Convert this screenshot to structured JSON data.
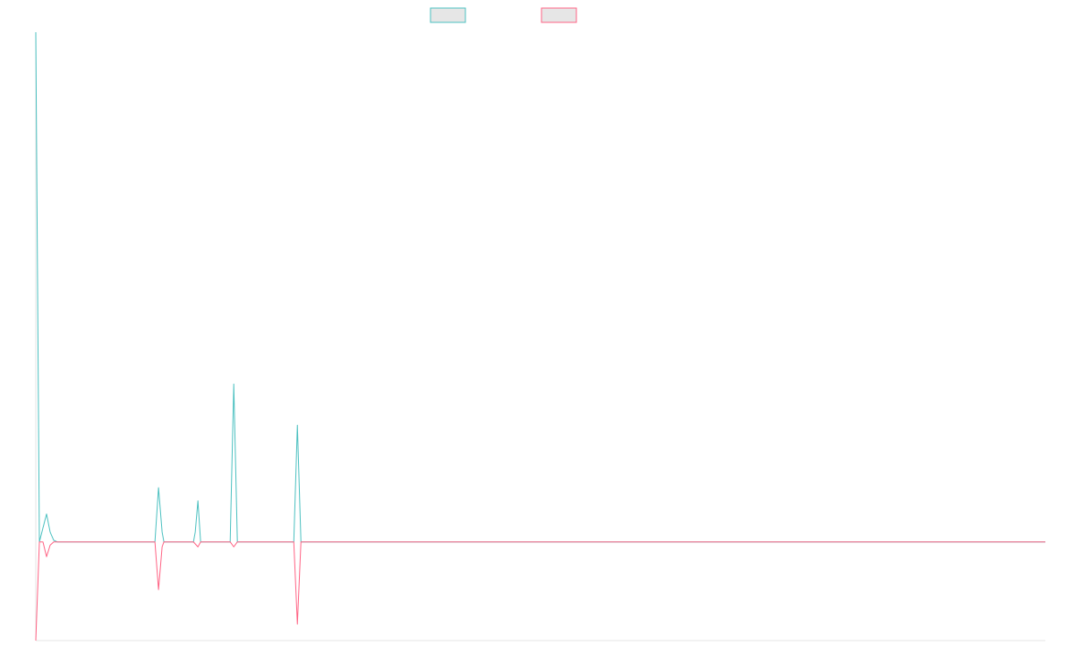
{
  "chart_data": {
    "type": "line",
    "title": "",
    "xlabel": "",
    "ylabel": "",
    "grid": false,
    "legend_position": "top",
    "x": [
      0,
      1,
      2,
      3,
      4,
      5,
      6,
      7,
      8,
      9,
      10,
      11,
      12,
      13,
      14,
      15,
      16,
      17,
      18,
      19,
      20,
      21,
      22,
      23,
      24,
      25,
      26,
      27,
      28,
      29,
      30,
      31,
      32,
      33,
      34,
      35,
      36,
      37,
      38,
      39,
      40,
      41,
      42,
      43,
      44,
      45,
      46,
      47,
      48,
      49,
      50,
      51,
      52,
      53,
      54,
      55,
      56,
      57,
      58,
      59,
      60,
      61,
      62,
      63,
      64,
      65,
      66,
      67,
      68,
      69,
      70,
      71,
      72,
      73,
      74,
      75,
      76,
      77,
      78,
      79,
      80,
      81,
      82,
      83,
      84,
      85,
      86,
      87,
      88,
      89,
      90,
      91,
      92,
      93,
      94,
      95,
      96,
      97,
      98,
      99,
      100,
      101,
      102,
      103,
      104,
      105,
      106,
      107,
      108,
      109,
      110,
      111,
      112,
      113,
      114,
      115,
      116,
      117,
      118,
      119,
      120,
      121,
      122,
      123,
      124,
      125,
      126,
      127,
      128,
      129,
      130,
      131,
      132,
      133,
      134,
      135,
      136,
      137,
      138,
      139,
      140,
      141,
      142,
      143,
      144,
      145,
      146,
      147,
      148,
      149,
      150,
      151,
      152,
      153,
      154,
      155,
      156,
      157,
      158,
      159,
      160,
      161,
      162,
      163,
      164,
      165,
      166,
      167,
      168,
      169,
      170,
      171,
      172,
      173,
      174,
      175,
      176,
      177,
      178,
      179,
      180,
      181,
      182,
      183,
      184,
      185,
      186,
      187,
      188,
      189,
      190,
      191,
      192,
      193,
      194,
      195,
      196,
      197,
      198,
      199,
      200,
      201,
      202,
      203,
      204,
      205,
      206,
      207,
      208,
      209,
      210,
      211,
      212,
      213,
      214,
      215,
      216,
      217,
      218,
      219,
      220,
      221,
      222,
      223,
      224,
      225,
      226,
      227,
      228,
      229,
      230,
      231,
      232,
      233,
      234,
      235,
      236,
      237,
      238,
      239,
      240,
      241,
      242,
      243,
      244,
      245,
      246,
      247,
      248,
      249,
      250,
      251,
      252,
      253,
      254,
      255,
      256,
      257,
      258,
      259,
      260,
      261,
      262,
      263,
      264,
      265,
      266,
      267,
      268,
      269,
      270,
      271,
      272,
      273,
      274,
      275,
      276,
      277,
      278,
      279,
      280,
      281,
      282,
      283,
      284,
      285,
      286,
      287,
      288,
      289,
      290,
      291,
      292,
      293,
      294,
      295,
      296,
      297,
      298,
      299,
      300,
      301,
      302,
      303,
      304,
      305,
      306,
      307,
      308,
      309,
      310,
      311,
      312,
      313,
      314,
      315,
      316,
      317,
      318,
      319,
      320,
      321,
      322,
      323,
      324,
      325,
      326,
      327,
      328,
      329,
      330,
      331,
      332,
      333,
      334,
      335,
      336,
      337,
      338,
      339,
      340,
      341,
      342,
      343,
      344,
      345,
      346,
      347,
      348,
      349,
      350,
      351,
      352,
      353,
      354,
      355,
      356,
      357,
      358,
      359,
      360,
      361,
      362,
      363,
      364,
      365,
      366,
      367,
      368,
      369,
      370,
      371,
      372,
      373,
      374,
      375,
      376,
      377,
      378,
      379,
      380,
      381,
      382,
      383,
      384,
      385,
      386,
      387,
      388,
      389,
      390,
      391,
      392,
      393,
      394,
      395,
      396,
      397,
      398,
      399,
      400,
      401,
      402,
      403,
      404,
      405,
      406,
      407,
      408,
      409,
      410,
      411,
      412,
      413,
      414,
      415,
      416,
      417,
      418,
      419,
      420,
      421,
      422,
      423,
      424,
      425,
      426,
      427,
      428,
      429,
      430,
      431,
      432,
      433,
      434,
      435,
      436,
      437,
      438,
      439,
      440,
      441,
      442,
      443,
      444,
      445,
      446,
      447,
      448,
      449,
      450,
      451,
      452,
      453,
      454,
      455,
      456,
      457,
      458,
      459,
      460,
      461,
      462,
      463,
      464,
      465,
      466,
      467,
      468,
      469,
      470,
      471,
      472,
      473,
      474,
      475,
      476,
      477,
      478,
      479,
      480,
      481,
      482,
      483,
      484,
      485,
      486,
      487,
      488,
      489,
      490,
      491,
      492,
      493,
      494,
      495,
      496,
      497,
      498,
      499,
      500,
      501,
      502,
      503,
      504,
      505,
      506,
      507,
      508,
      509,
      510,
      511,
      512,
      513,
      514,
      515,
      516,
      517,
      518,
      519,
      520,
      521,
      522,
      523,
      524,
      525,
      526,
      527,
      528,
      529,
      530,
      531,
      532,
      533,
      534,
      535,
      536,
      537,
      538,
      539,
      540,
      541,
      542,
      543,
      544,
      545,
      546,
      547,
      548,
      549,
      550,
      551,
      552,
      553,
      554,
      555,
      556,
      557,
      558,
      559,
      560,
      561,
      562,
      563,
      564,
      565,
      566,
      567,
      568,
      569,
      570,
      571,
      572,
      573,
      574,
      575,
      576,
      577,
      578,
      579,
      580,
      581,
      582,
      583,
      584,
      585,
      586,
      587,
      588,
      589,
      590,
      591,
      592,
      593,
      594,
      595,
      596,
      597,
      598,
      599,
      600,
      601,
      602,
      603,
      604,
      605,
      606,
      607,
      608,
      609,
      610,
      611,
      612,
      613,
      614,
      615,
      616,
      617,
      618,
      619,
      620,
      621,
      622,
      623,
      624,
      625,
      626,
      627,
      628,
      629,
      630,
      631,
      632,
      633,
      634,
      635,
      636,
      637,
      638,
      639,
      640,
      641,
      642,
      643,
      644,
      645,
      646,
      647,
      648,
      649,
      650,
      651,
      652,
      653,
      654,
      655,
      656,
      657,
      658,
      659,
      660,
      661,
      662,
      663,
      664,
      665,
      666,
      667,
      668,
      669,
      670,
      671,
      672,
      673,
      674,
      675,
      676,
      677,
      678,
      679,
      680,
      681,
      682,
      683,
      684,
      685,
      686,
      687,
      688,
      689,
      690,
      691,
      692,
      693,
      694,
      695,
      696,
      697,
      698,
      699,
      700,
      701,
      702,
      703,
      704,
      705,
      706,
      707,
      708,
      709,
      710,
      711,
      712,
      713,
      714,
      715,
      716,
      717,
      718,
      719,
      720,
      721,
      722,
      723,
      724,
      725,
      726,
      727,
      728,
      729,
      730,
      731,
      732,
      733,
      734,
      735,
      736,
      737,
      738,
      739,
      740,
      741,
      742,
      743,
      744,
      745,
      746,
      747,
      748,
      749,
      750,
      751,
      752,
      753,
      754,
      755,
      756,
      757,
      758,
      759,
      760,
      761,
      762,
      763,
      764,
      765,
      766,
      767,
      768,
      769,
      770,
      771,
      772,
      773,
      774,
      775,
      776,
      777,
      778,
      779,
      780,
      781,
      782,
      783,
      784,
      785,
      786,
      787,
      788,
      789,
      790,
      791,
      792,
      793,
      794,
      795,
      796,
      797,
      798,
      799,
      800,
      801,
      802,
      803,
      804,
      805,
      806,
      807,
      808,
      809,
      810,
      811,
      812,
      813,
      814,
      815,
      816,
      817,
      818,
      819,
      820,
      821,
      822,
      823,
      824,
      825,
      826,
      827,
      828,
      829,
      830,
      831,
      832,
      833,
      834,
      835,
      836,
      837,
      838,
      839,
      840,
      841,
      842,
      843,
      844,
      845,
      846,
      847,
      848,
      849,
      850,
      851,
      852,
      853,
      854,
      855,
      856,
      857,
      858,
      859,
      860,
      861,
      862,
      863,
      864,
      865,
      866,
      867,
      868,
      869,
      870,
      871,
      872,
      873,
      874,
      875,
      876,
      877,
      878,
      879,
      880,
      881,
      882,
      883,
      884,
      885,
      886,
      887,
      888,
      889,
      890,
      891,
      892,
      893,
      894,
      895,
      896,
      897,
      898,
      899,
      900,
      901,
      902,
      903,
      904,
      905,
      906,
      907,
      908,
      909,
      910,
      911,
      912,
      913,
      914,
      915,
      916,
      917,
      918,
      919,
      920,
      921,
      922,
      923,
      924,
      925,
      926,
      927,
      928,
      929,
      930,
      931,
      932,
      933,
      934,
      935,
      936,
      937,
      938,
      939,
      940,
      941,
      942,
      943,
      944,
      945,
      946,
      947,
      948,
      949,
      950,
      951,
      952,
      953,
      954,
      955,
      956,
      957,
      958,
      959,
      960,
      961,
      962,
      963,
      964,
      965,
      966,
      967,
      968,
      969,
      970,
      971,
      972,
      973,
      974,
      975,
      976,
      977,
      978,
      979,
      980,
      981,
      982,
      983,
      984,
      985,
      986,
      987,
      988,
      989,
      990,
      991,
      992,
      993,
      994,
      995,
      996,
      997,
      998,
      999,
      1000,
      1001,
      1002,
      1003,
      1004,
      1005,
      1006,
      1007,
      1008,
      1009,
      1010,
      1011,
      1012,
      1013,
      1014,
      1015,
      1016,
      1017,
      1018,
      1019,
      1020,
      1021,
      1022,
      1023,
      1024,
      1025,
      1026,
      1027,
      1028,
      1029,
      1030,
      1031,
      1032,
      1033,
      1034,
      1035,
      1036,
      1037,
      1038,
      1039,
      1040,
      1041,
      1042,
      1043,
      1044,
      1045,
      1046,
      1047,
      1048,
      1049,
      1050,
      1051,
      1052,
      1053,
      1054,
      1055,
      1056,
      1057,
      1058,
      1059,
      1060,
      1061,
      1062,
      1063,
      1064,
      1065,
      1066,
      1067,
      1068,
      1069,
      1070,
      1071,
      1072,
      1073,
      1074,
      1075,
      1076,
      1077,
      1078,
      1079,
      1080,
      1081,
      1082,
      1083,
      1084,
      1085,
      1086,
      1087,
      1088,
      1089,
      1090,
      1091,
      1092,
      1093,
      1094,
      1095,
      1096,
      1097,
      1098,
      1099,
      1100,
      1101,
      1102,
      1103,
      1104,
      1105,
      1106,
      1107,
      1108,
      1109,
      1110,
      1111,
      1112,
      1113,
      1114,
      1115,
      1116,
      1117,
      1118,
      1119,
      1120,
      1121,
      1122,
      1123,
      1124,
      1125,
      1126,
      1127
    ],
    "xlim": [
      0,
      1127
    ],
    "ylim": [
      -60,
      310
    ],
    "series": [
      {
        "color": "#4bc0c0",
        "points": [
          [
            0,
            310
          ],
          [
            4,
            0
          ],
          [
            12,
            17
          ],
          [
            16,
            6
          ],
          [
            20,
            1
          ],
          [
            24,
            0
          ],
          [
            133,
            0
          ],
          [
            137,
            33
          ],
          [
            141,
            6
          ],
          [
            143,
            0
          ],
          [
            176,
            0
          ],
          [
            178,
            6
          ],
          [
            181,
            25
          ],
          [
            184,
            0
          ],
          [
            217,
            0
          ],
          [
            221,
            96
          ],
          [
            225,
            0
          ],
          [
            288,
            0
          ],
          [
            292,
            71
          ],
          [
            296,
            0
          ],
          [
            1127,
            0
          ]
        ]
      },
      {
        "color": "#ff6384",
        "points": [
          [
            0,
            -60
          ],
          [
            4,
            0
          ],
          [
            8,
            0
          ],
          [
            12,
            -9
          ],
          [
            16,
            -2
          ],
          [
            20,
            0
          ],
          [
            133,
            0
          ],
          [
            137,
            -29
          ],
          [
            141,
            -3
          ],
          [
            143,
            0
          ],
          [
            176,
            0
          ],
          [
            181,
            -3
          ],
          [
            184,
            0
          ],
          [
            217,
            0
          ],
          [
            221,
            -3
          ],
          [
            225,
            0
          ],
          [
            288,
            0
          ],
          [
            292,
            -50
          ],
          [
            296,
            0
          ],
          [
            1127,
            0
          ]
        ]
      }
    ]
  }
}
